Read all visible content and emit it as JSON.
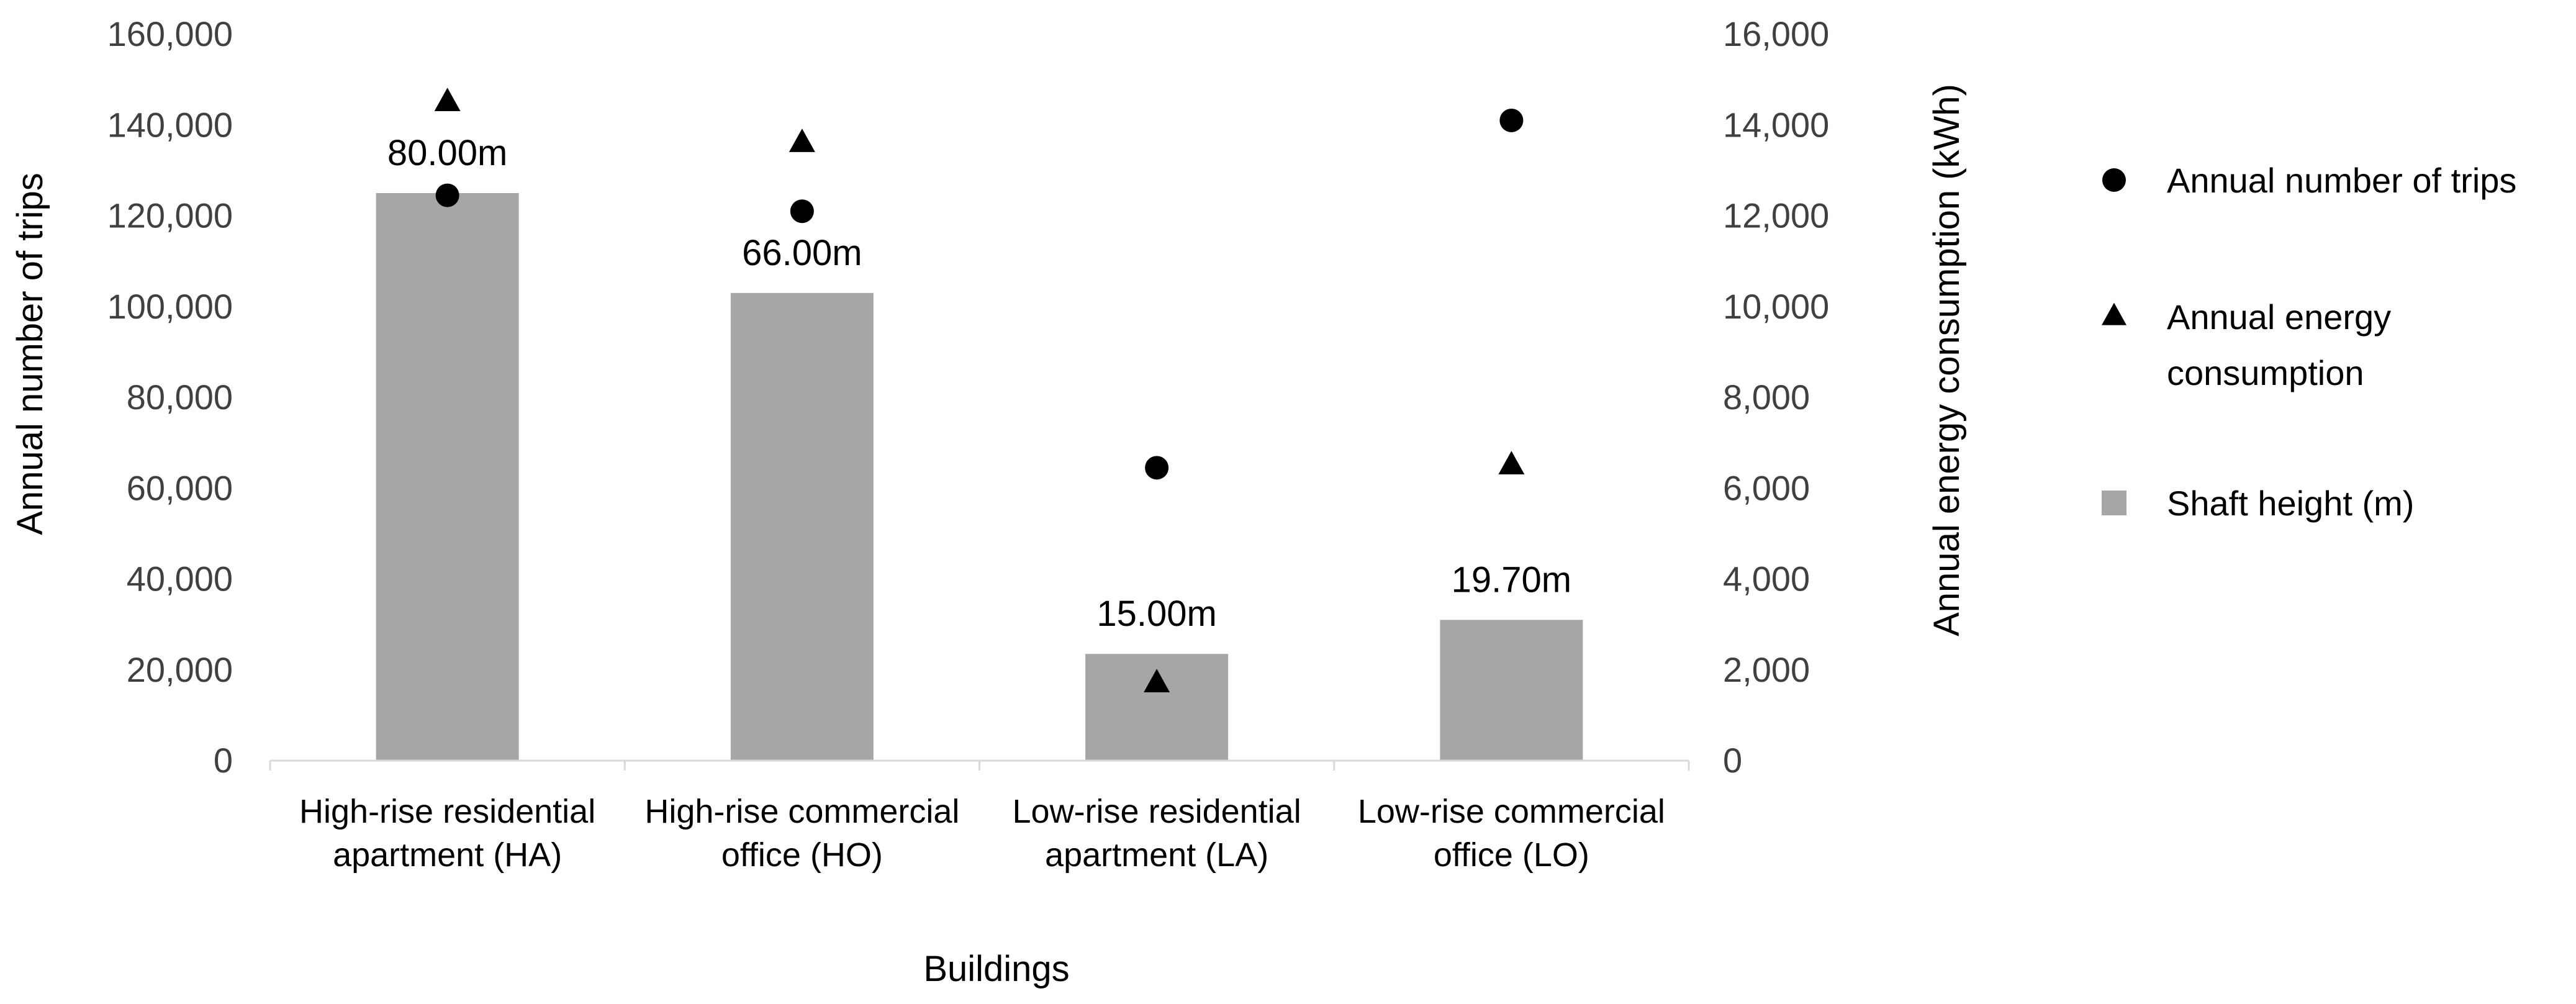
{
  "chart_data": {
    "type": "bar",
    "categories": [
      [
        "High-rise residential",
        "apartment (HA)"
      ],
      [
        "High-rise commercial",
        "office (HO)"
      ],
      [
        "Low-rise residential",
        "apartment (LA)"
      ],
      [
        "Low-rise commercial",
        "office (LO)"
      ]
    ],
    "xlabel": "Buildings",
    "ylabel_left": "Annual number of trips",
    "ylabel_right": "Annual energy consumption (kWh)",
    "ylim_left": [
      0,
      160000
    ],
    "ylim_right": [
      0,
      16000
    ],
    "yticks_left": [
      "0",
      "20,000",
      "40,000",
      "60,000",
      "80,000",
      "100,000",
      "120,000",
      "140,000",
      "160,000"
    ],
    "yticks_right": [
      "0",
      "2,000",
      "4,000",
      "6,000",
      "8,000",
      "10,000",
      "12,000",
      "14,000",
      "16,000"
    ],
    "grid": false,
    "legend_position": "right",
    "series": [
      {
        "name": "Shaft height (m)",
        "kind": "bar",
        "axis": "left",
        "color": "#a6a6a6",
        "values": [
          125000,
          103000,
          23500,
          31000
        ],
        "data_labels": [
          "80.00m",
          "66.00m",
          "15.00m",
          "19.70m"
        ]
      },
      {
        "name": "Annual number of trips",
        "kind": "scatter",
        "marker": "circle",
        "axis": "left",
        "color": "#000000",
        "values": [
          124500,
          121000,
          64500,
          141000
        ]
      },
      {
        "name": "Annual energy consumption",
        "kind": "scatter",
        "marker": "triangle",
        "axis": "right",
        "color": "#000000",
        "values": [
          14500,
          13600,
          1700,
          6500
        ]
      }
    ],
    "legend": [
      {
        "marker": "circle",
        "lines": [
          "Annual number of trips"
        ]
      },
      {
        "marker": "triangle",
        "lines": [
          "Annual energy",
          "consumption"
        ]
      },
      {
        "marker": "square",
        "lines": [
          "Shaft height (m)"
        ]
      }
    ]
  }
}
